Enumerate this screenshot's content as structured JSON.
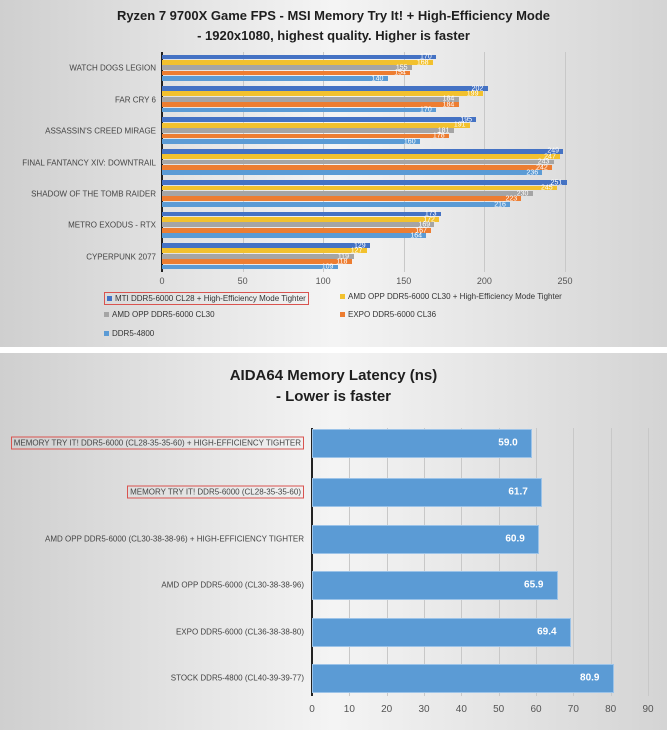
{
  "chart_data": [
    {
      "type": "bar",
      "orientation": "horizontal",
      "title": "Ryzen 7 9700X Game FPS - MSI Memory Try It! + High-Efficiency Mode",
      "subtitle": "- 1920x1080, highest quality. Higher is faster",
      "xlabel": "",
      "ylabel": "",
      "xlim": [
        0,
        250
      ],
      "x_ticks": [
        "0",
        "50",
        "100",
        "150",
        "200",
        "250"
      ],
      "grid": true,
      "legend_position": "bottom",
      "categories": [
        "WATCH DOGS LEGION",
        "FAR CRY 6",
        "ASSASSIN'S CREED MIRAGE",
        "FINAL FANTANCY XIV: DOWNTRAIL",
        "SHADOW OF THE TOMB RAIDER",
        "METRO EXODUS - RTX",
        "CYPERPUNK 2077"
      ],
      "series": [
        {
          "name": "MTI DDR5-6000 CL28 + High-Efficiency Mode Tighter",
          "color": "#4472c4",
          "values": [
            170,
            202,
            195,
            249,
            251,
            173,
            129
          ],
          "highlighted": true
        },
        {
          "name": "AMD OPP DDR5-6000 CL30 + High-Efficiency Mode Tighter",
          "color": "#f2c12e",
          "values": [
            168,
            199,
            191,
            247,
            245,
            172,
            127
          ]
        },
        {
          "name": "AMD OPP DDR5-6000 CL30",
          "color": "#a5a5a5",
          "values": [
            155,
            184,
            181,
            243,
            230,
            169,
            119
          ]
        },
        {
          "name": "EXPO DDR5-6000 CL36",
          "color": "#ed7d31",
          "values": [
            154,
            184,
            178,
            242,
            223,
            167,
            118
          ]
        },
        {
          "name": "DDR5-4800",
          "color": "#5b9bd5",
          "values": [
            140,
            170,
            160,
            236,
            216,
            164,
            109
          ]
        }
      ]
    },
    {
      "type": "bar",
      "orientation": "horizontal",
      "title": "AIDA64 Memory Latency (ns)",
      "subtitle": "- Lower is faster",
      "xlabel": "",
      "ylabel": "",
      "xlim": [
        0,
        90
      ],
      "x_ticks": [
        "0",
        "10",
        "20",
        "30",
        "40",
        "50",
        "60",
        "70",
        "80",
        "90"
      ],
      "grid": true,
      "categories": [
        "MEMORY TRY IT! DDR5-6000 (CL28-35-35-60) + HIGH-EFFICIENCY TIGHTER",
        "MEMORY TRY IT! DDR5-6000 (CL28-35-35-60)",
        "AMD OPP DDR5-6000 (CL30-38-38-96) + HIGH-EFFICIENCY TIGHTER",
        "AMD OPP DDR5-6000 (CL30-38-38-96)",
        "EXPO DDR5-6000 (CL36-38-38-80)",
        "STOCK DDR5-4800 (CL40-39-39-77)"
      ],
      "highlighted_categories": [
        0,
        1
      ],
      "values": [
        59.0,
        61.7,
        60.9,
        65.9,
        69.4,
        80.9
      ],
      "value_labels": [
        "59.0",
        "61.7",
        "60.9",
        "65.9",
        "69.4",
        "80.9"
      ],
      "color": "#5b9bd5"
    }
  ],
  "fps": {
    "title": "Ryzen 7 9700X Game FPS - MSI Memory Try It! + High-Efficiency Mode",
    "subtitle": "- 1920x1080, highest quality. Higher is faster",
    "ticks": [
      "0",
      "50",
      "100",
      "150",
      "200",
      "250"
    ],
    "categories": [
      "WATCH DOGS LEGION",
      "FAR CRY 6",
      "ASSASSIN'S CREED MIRAGE",
      "FINAL FANTANCY XIV: DOWNTRAIL",
      "SHADOW OF THE TOMB RAIDER",
      "METRO EXODUS - RTX",
      "CYPERPUNK 2077"
    ],
    "legend": [
      "MTI DDR5-6000 CL28 + High-Efficiency Mode Tighter",
      "AMD OPP DDR5-6000 CL30 + High-Efficiency Mode Tighter",
      "AMD OPP DDR5-6000 CL30",
      "EXPO DDR5-6000 CL36",
      "DDR5-4800"
    ]
  },
  "latency": {
    "title": "AIDA64 Memory Latency (ns)",
    "subtitle": "- Lower is faster",
    "ticks": [
      "0",
      "10",
      "20",
      "30",
      "40",
      "50",
      "60",
      "70",
      "80",
      "90"
    ]
  }
}
